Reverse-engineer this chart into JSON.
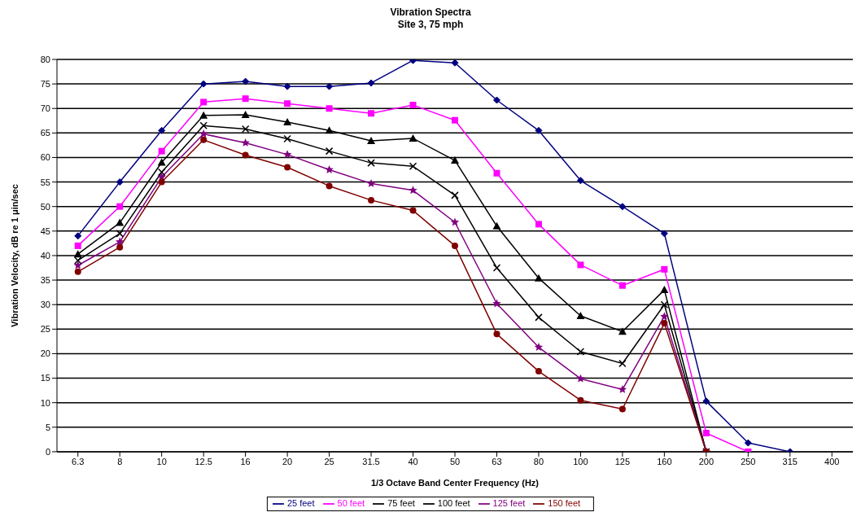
{
  "chart_data": {
    "type": "line",
    "title": "Vibration Spectra",
    "subtitle": "Site 3, 75 mph",
    "xlabel": "1/3 Octave Band Center Frequency (Hz)",
    "ylabel": "Vibration Velocity, dB re 1 μin/sec",
    "categories": [
      "6.3",
      "8",
      "10",
      "12.5",
      "16",
      "20",
      "25",
      "31.5",
      "40",
      "50",
      "63",
      "80",
      "100",
      "125",
      "160",
      "200",
      "250",
      "315",
      "400"
    ],
    "ylim": [
      0,
      80
    ],
    "yticks": [
      0,
      5,
      10,
      15,
      20,
      25,
      30,
      35,
      40,
      45,
      50,
      55,
      60,
      65,
      70,
      75,
      80
    ],
    "grid": "y",
    "legend": "bottom",
    "line_style": "solid",
    "series": [
      {
        "name": "25 feet",
        "color": "#000080",
        "marker": "diamond",
        "values": [
          44,
          55,
          65.5,
          75,
          75.5,
          74.5,
          74.5,
          75.2,
          79.8,
          79.3,
          71.7,
          65.5,
          55.3,
          50,
          44.5,
          10.3,
          1.8,
          0,
          null
        ]
      },
      {
        "name": "50 feet",
        "color": "#ff00ff",
        "marker": "square",
        "values": [
          42,
          50,
          61.3,
          71.3,
          72,
          71,
          70,
          69,
          70.7,
          67.6,
          56.8,
          46.4,
          38.1,
          33.9,
          37.2,
          3.8,
          0,
          null,
          null
        ]
      },
      {
        "name": "75 feet",
        "color": "#000000",
        "marker": "triangle",
        "values": [
          40.3,
          46.7,
          59,
          68.6,
          68.7,
          67.2,
          65.5,
          63.4,
          63.9,
          59.4,
          46,
          35.4,
          27.7,
          24.5,
          33,
          0,
          null,
          null,
          null
        ]
      },
      {
        "name": "100 feet",
        "color": "#000000",
        "marker": "cross",
        "values": [
          39,
          44.5,
          57,
          66.5,
          65.8,
          63.8,
          61.3,
          58.9,
          58.2,
          52.3,
          37.5,
          27.4,
          20.4,
          18,
          30,
          0,
          null,
          null,
          null
        ]
      },
      {
        "name": "125 feet",
        "color": "#800080",
        "marker": "star",
        "values": [
          38,
          42.8,
          56,
          64.8,
          63,
          60.6,
          57.5,
          54.7,
          53.3,
          46.8,
          30.2,
          21.3,
          14.9,
          12.7,
          27.6,
          0,
          null,
          null,
          null
        ]
      },
      {
        "name": "150 feet",
        "color": "#800000",
        "marker": "circle",
        "values": [
          36.7,
          41.7,
          55,
          63.6,
          60.5,
          58,
          54.2,
          51.3,
          49.2,
          42,
          24,
          16.4,
          10.5,
          8.7,
          26.2,
          0,
          null,
          null,
          null
        ]
      }
    ]
  }
}
